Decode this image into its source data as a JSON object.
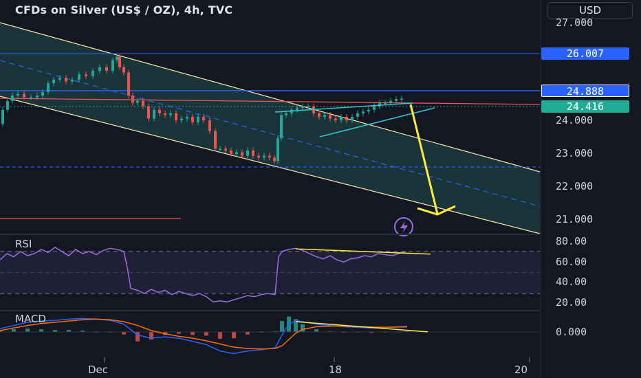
{
  "header": {
    "title": "CFDs on Silver (US$ / OZ), 4h, TVC",
    "currency": "USD"
  },
  "price_tags": {
    "resistance": "26.007",
    "support": "24.888",
    "last": "24.416"
  },
  "price_axis": [
    "27.000",
    "24.000",
    "23.000",
    "22.000",
    "21.000"
  ],
  "rsi_pane": {
    "label": "RSI",
    "axis": [
      "80.00",
      "60.00",
      "40.00",
      "20.00"
    ]
  },
  "macd_pane": {
    "label": "MACD",
    "axis": [
      "0.000"
    ]
  },
  "time_axis": [
    "Dec",
    "18",
    "20"
  ],
  "colors": {
    "background": "#131722",
    "bull": "#26a69a",
    "bear": "#ef5350",
    "channel": "#ffe9a8",
    "channel_fill": "#1f4f4f",
    "projection": "#ffeb3b",
    "wedge": "#2ec7d6",
    "level_line": "#2962ff",
    "rsi_line": "#9c6ce6",
    "macd_line": "#2962ff",
    "signal_line": "#ff6d00"
  },
  "chart_data": [
    {
      "type": "candlestick",
      "title": "CFDs on Silver (US$ / OZ), 4h, TVC",
      "ylim": [
        20.6,
        27.2
      ],
      "x_ticks": [
        "Dec",
        "18",
        "20"
      ],
      "y_ticks": [
        27,
        24,
        23,
        22,
        21
      ],
      "horizontal_levels": [
        26.007,
        24.888,
        24.416,
        22.6
      ],
      "close_path": [
        [
          0,
          23.7
        ],
        [
          8,
          24.1
        ],
        [
          14,
          24.35
        ],
        [
          22,
          24.5
        ],
        [
          30,
          24.55
        ],
        [
          40,
          24.45
        ],
        [
          50,
          24.45
        ],
        [
          58,
          24.5
        ],
        [
          66,
          24.6
        ],
        [
          74,
          24.85
        ],
        [
          82,
          24.95
        ],
        [
          92,
          25.0
        ],
        [
          100,
          24.9
        ],
        [
          110,
          24.95
        ],
        [
          120,
          25.1
        ],
        [
          130,
          25.05
        ],
        [
          140,
          25.2
        ],
        [
          150,
          25.3
        ],
        [
          160,
          25.2
        ],
        [
          168,
          25.5
        ],
        [
          172,
          25.6
        ],
        [
          176,
          25.3
        ],
        [
          184,
          25.15
        ],
        [
          190,
          24.5
        ],
        [
          196,
          24.3
        ],
        [
          204,
          24.35
        ],
        [
          212,
          24.2
        ],
        [
          220,
          23.85
        ],
        [
          228,
          24.1
        ],
        [
          236,
          24.0
        ],
        [
          244,
          23.95
        ],
        [
          252,
          24.0
        ],
        [
          260,
          23.8
        ],
        [
          268,
          23.85
        ],
        [
          276,
          23.9
        ],
        [
          284,
          23.75
        ],
        [
          292,
          23.9
        ],
        [
          300,
          23.8
        ],
        [
          310,
          23.5
        ],
        [
          316,
          23.0
        ],
        [
          324,
          23.0
        ],
        [
          332,
          22.95
        ],
        [
          340,
          22.85
        ],
        [
          348,
          22.9
        ],
        [
          356,
          22.8
        ],
        [
          364,
          22.95
        ],
        [
          372,
          22.8
        ],
        [
          380,
          22.75
        ],
        [
          388,
          22.8
        ],
        [
          396,
          22.75
        ],
        [
          402,
          22.65
        ],
        [
          406,
          23.3
        ],
        [
          412,
          23.95
        ],
        [
          420,
          24.0
        ],
        [
          428,
          24.1
        ],
        [
          436,
          24.15
        ],
        [
          444,
          24.2
        ],
        [
          452,
          24.2
        ],
        [
          460,
          24.0
        ],
        [
          468,
          23.9
        ],
        [
          476,
          23.95
        ],
        [
          484,
          23.85
        ],
        [
          492,
          23.8
        ],
        [
          500,
          23.9
        ],
        [
          508,
          23.8
        ],
        [
          516,
          23.9
        ],
        [
          524,
          24.0
        ],
        [
          532,
          24.05
        ],
        [
          540,
          24.1
        ],
        [
          548,
          24.2
        ],
        [
          556,
          24.3
        ],
        [
          564,
          24.3
        ],
        [
          572,
          24.35
        ],
        [
          580,
          24.4
        ],
        [
          588,
          24.416
        ]
      ],
      "annotations": {
        "channel": true,
        "wedge": true,
        "projection_arrow_target": 21.2
      }
    },
    {
      "type": "line",
      "name": "RSI",
      "ylim": [
        15,
        85
      ],
      "y_ticks": [
        80,
        60,
        40,
        20
      ],
      "bands": [
        70,
        30
      ],
      "values": [
        [
          0,
          62
        ],
        [
          10,
          68
        ],
        [
          20,
          65
        ],
        [
          30,
          70
        ],
        [
          40,
          66
        ],
        [
          50,
          68
        ],
        [
          60,
          72
        ],
        [
          70,
          69
        ],
        [
          80,
          74
        ],
        [
          90,
          70
        ],
        [
          100,
          66
        ],
        [
          110,
          72
        ],
        [
          120,
          68
        ],
        [
          130,
          70
        ],
        [
          140,
          67
        ],
        [
          150,
          71
        ],
        [
          160,
          73
        ],
        [
          170,
          72
        ],
        [
          180,
          70
        ],
        [
          185,
          55
        ],
        [
          190,
          35
        ],
        [
          200,
          33
        ],
        [
          210,
          30
        ],
        [
          220,
          34
        ],
        [
          230,
          31
        ],
        [
          240,
          33
        ],
        [
          250,
          29
        ],
        [
          260,
          32
        ],
        [
          270,
          30
        ],
        [
          280,
          28
        ],
        [
          290,
          30
        ],
        [
          300,
          27
        ],
        [
          310,
          22
        ],
        [
          320,
          23
        ],
        [
          330,
          22
        ],
        [
          340,
          24
        ],
        [
          350,
          26
        ],
        [
          360,
          28
        ],
        [
          370,
          27
        ],
        [
          380,
          29
        ],
        [
          390,
          30
        ],
        [
          400,
          29
        ],
        [
          405,
          65
        ],
        [
          410,
          70
        ],
        [
          420,
          72
        ],
        [
          430,
          73
        ],
        [
          440,
          71
        ],
        [
          450,
          68
        ],
        [
          460,
          65
        ],
        [
          470,
          63
        ],
        [
          480,
          66
        ],
        [
          490,
          62
        ],
        [
          500,
          60
        ],
        [
          510,
          63
        ],
        [
          520,
          64
        ],
        [
          530,
          66
        ],
        [
          540,
          65
        ],
        [
          550,
          68
        ],
        [
          560,
          67
        ],
        [
          570,
          66
        ],
        [
          580,
          68
        ],
        [
          590,
          70
        ]
      ]
    },
    {
      "type": "bar",
      "name": "MACD",
      "series_lines": [
        "macd",
        "signal"
      ],
      "macd": [
        [
          0,
          0.05
        ],
        [
          20,
          0.1
        ],
        [
          40,
          0.15
        ],
        [
          60,
          0.17
        ],
        [
          80,
          0.18
        ],
        [
          100,
          0.2
        ],
        [
          120,
          0.21
        ],
        [
          140,
          0.2
        ],
        [
          160,
          0.18
        ],
        [
          180,
          0.12
        ],
        [
          200,
          -0.05
        ],
        [
          220,
          -0.1
        ],
        [
          240,
          -0.08
        ],
        [
          260,
          -0.1
        ],
        [
          280,
          -0.15
        ],
        [
          300,
          -0.2
        ],
        [
          320,
          -0.3
        ],
        [
          340,
          -0.34
        ],
        [
          360,
          -0.3
        ],
        [
          380,
          -0.28
        ],
        [
          400,
          -0.25
        ],
        [
          410,
          -0.05
        ],
        [
          420,
          0.12
        ],
        [
          430,
          0.18
        ],
        [
          440,
          0.16
        ],
        [
          460,
          0.12
        ],
        [
          480,
          0.1
        ],
        [
          500,
          0.08
        ],
        [
          520,
          0.07
        ],
        [
          540,
          0.06
        ],
        [
          560,
          0.07
        ],
        [
          580,
          0.08
        ],
        [
          592,
          0.09
        ]
      ],
      "signal": [
        [
          0,
          0.02
        ],
        [
          20,
          0.06
        ],
        [
          40,
          0.1
        ],
        [
          60,
          0.13
        ],
        [
          80,
          0.15
        ],
        [
          100,
          0.17
        ],
        [
          120,
          0.19
        ],
        [
          140,
          0.2
        ],
        [
          160,
          0.19
        ],
        [
          180,
          0.16
        ],
        [
          200,
          0.1
        ],
        [
          220,
          0.02
        ],
        [
          240,
          -0.03
        ],
        [
          260,
          -0.07
        ],
        [
          280,
          -0.1
        ],
        [
          300,
          -0.14
        ],
        [
          320,
          -0.19
        ],
        [
          340,
          -0.24
        ],
        [
          360,
          -0.26
        ],
        [
          380,
          -0.27
        ],
        [
          400,
          -0.26
        ],
        [
          410,
          -0.22
        ],
        [
          420,
          -0.12
        ],
        [
          430,
          -0.02
        ],
        [
          440,
          0.04
        ],
        [
          460,
          0.08
        ],
        [
          480,
          0.09
        ],
        [
          500,
          0.09
        ],
        [
          520,
          0.08
        ],
        [
          540,
          0.075
        ],
        [
          560,
          0.073
        ],
        [
          580,
          0.075
        ],
        [
          592,
          0.078
        ]
      ],
      "ylim": [
        -0.4,
        0.3
      ]
    }
  ]
}
